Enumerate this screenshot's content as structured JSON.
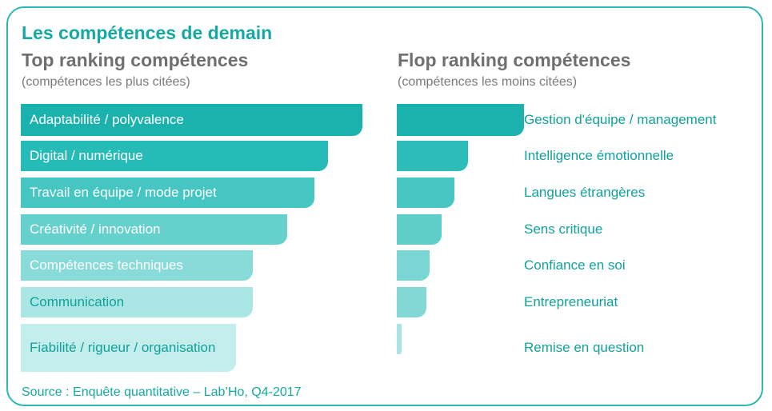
{
  "title": "Les compétences de demain",
  "source": "Source : Enquête quantitative – Lab’Ho, Q4-2017",
  "chart_data": [
    {
      "type": "bar",
      "orientation": "horizontal",
      "title": "Top ranking compétences",
      "subtitle": "(compétences les plus citées)",
      "categories": [
        "Adaptabilité / polyvalence",
        "Digital / numérique",
        "Travail en équipe / mode projet",
        "Créativité / innovation",
        "Compétences techniques",
        "Communication",
        "Fiabilité / rigueur / organisation"
      ],
      "values": [
        100,
        90,
        86,
        78,
        68,
        68,
        63
      ],
      "colors": [
        "#1bb1ad",
        "#27bbb7",
        "#45c6c2",
        "#66d0cc",
        "#88dbd8",
        "#a9e6e4",
        "#c4eeec"
      ],
      "label_colors": [
        "#ffffff",
        "#ffffff",
        "#ffffff",
        "#ffffff",
        "#ffffff",
        "#11a19c",
        "#11a19c"
      ],
      "label_position": "inside"
    },
    {
      "type": "bar",
      "orientation": "horizontal",
      "title": "Flop ranking compétences",
      "subtitle": "(compétences les moins citées)",
      "categories": [
        "Gestion d'équipe / management",
        "Intelligence émotionnelle",
        "Langues étrangères",
        "Sens critique",
        "Confiance en soi",
        "Entrepreneuriat",
        "Remise en question"
      ],
      "values": [
        100,
        56,
        45,
        35,
        26,
        23,
        4
      ],
      "colors": [
        "#1bb1ad",
        "#2cbdb9",
        "#47c6c2",
        "#5fcdca",
        "#7ad6d3",
        "#82d8d5",
        "#a8e5e2"
      ],
      "label_colors": [
        "#11a19c",
        "#11a19c",
        "#11a19c",
        "#11a19c",
        "#11a19c",
        "#11a19c",
        "#11a19c"
      ],
      "label_position": "right"
    }
  ]
}
